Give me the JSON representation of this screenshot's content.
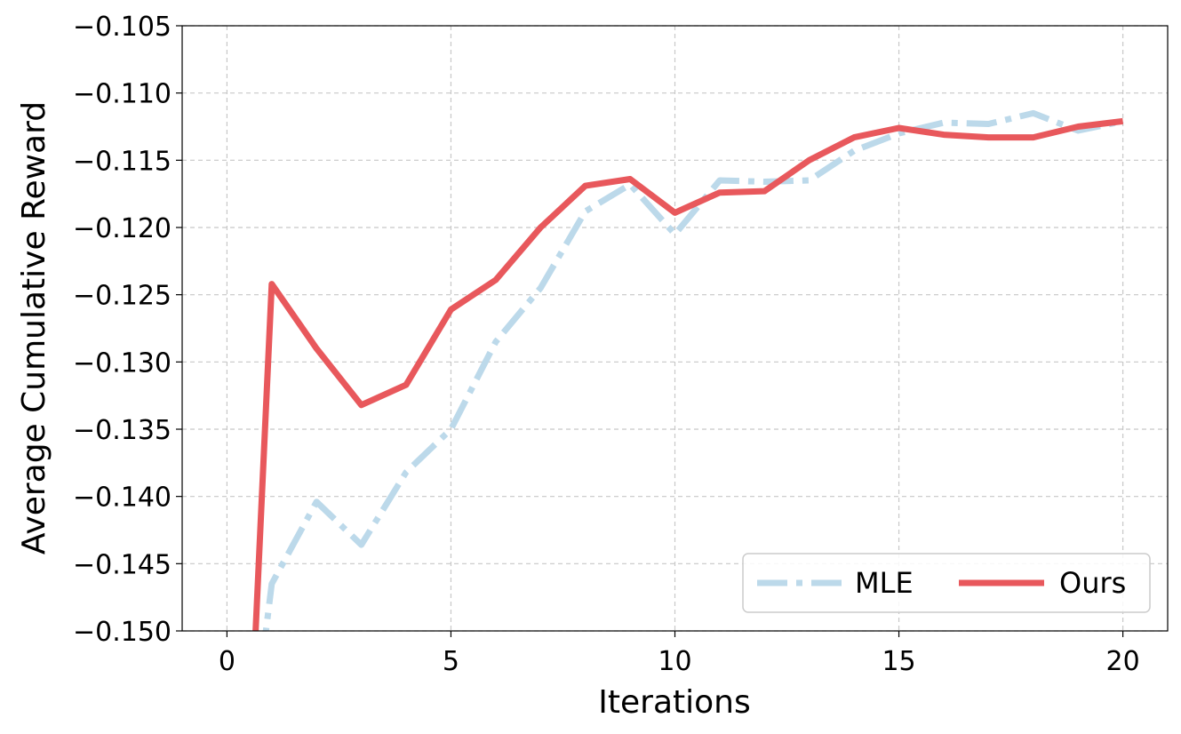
{
  "chart_data": {
    "type": "line",
    "title": "",
    "xlabel": "Iterations",
    "ylabel": "Average Cumulative Reward",
    "xlim": [
      -1,
      21
    ],
    "ylim": [
      -0.15,
      -0.105
    ],
    "x_ticks": [
      0,
      5,
      10,
      15,
      20
    ],
    "x_tick_labels": [
      "0",
      "5",
      "10",
      "15",
      "20"
    ],
    "y_ticks": [
      -0.15,
      -0.145,
      -0.14,
      -0.135,
      -0.13,
      -0.125,
      -0.12,
      -0.115,
      -0.11,
      -0.105
    ],
    "y_tick_labels": [
      "−0.150",
      "−0.145",
      "−0.140",
      "−0.135",
      "−0.130",
      "−0.125",
      "−0.120",
      "−0.115",
      "−0.110",
      "−0.105"
    ],
    "grid": true,
    "legend_position": "lower-right",
    "legend_columns": 2,
    "series": [
      {
        "name": "MLE",
        "color": "#bcd9ea",
        "style": "dashdot",
        "x": [
          0.5,
          1,
          2,
          3,
          4,
          5,
          6,
          7,
          8,
          9,
          10,
          11,
          12,
          13,
          14,
          15,
          16,
          17,
          18,
          19,
          20
        ],
        "y": [
          -0.16,
          -0.1465,
          -0.1404,
          -0.1436,
          -0.1382,
          -0.135,
          -0.1285,
          -0.1245,
          -0.1188,
          -0.1168,
          -0.1205,
          -0.1165,
          -0.1166,
          -0.1165,
          -0.1143,
          -0.113,
          -0.1122,
          -0.1123,
          -0.1115,
          -0.1128,
          -0.1121
        ]
      },
      {
        "name": "Ours",
        "color": "#e8585c",
        "style": "solid",
        "x": [
          0.5,
          1,
          2,
          3,
          4,
          5,
          6,
          7,
          8,
          9,
          10,
          11,
          12,
          13,
          14,
          15,
          16,
          17,
          18,
          19,
          20
        ],
        "y": [
          -0.16,
          -0.1242,
          -0.129,
          -0.1332,
          -0.1317,
          -0.1261,
          -0.1239,
          -0.12,
          -0.1169,
          -0.1164,
          -0.1189,
          -0.1174,
          -0.1173,
          -0.115,
          -0.1133,
          -0.1126,
          -0.1131,
          -0.1133,
          -0.1133,
          -0.1125,
          -0.1121
        ]
      }
    ]
  }
}
